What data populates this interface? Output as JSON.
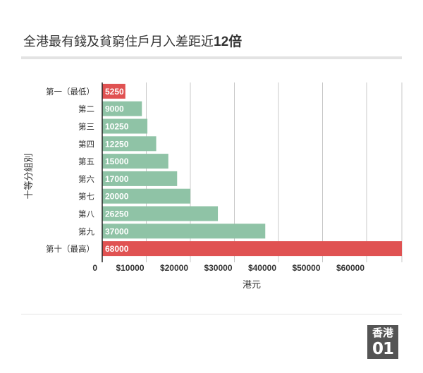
{
  "title": {
    "text": "全港最有錢及貧窮住戶月入差距近",
    "highlight": "12倍"
  },
  "logo": {
    "top": "香港",
    "bottom": "01"
  },
  "colors": {
    "normal": "#8fc3a6",
    "highlight": "#e05252",
    "grid": "#c8c8c8",
    "axis": "#222222"
  },
  "chart_data": {
    "type": "bar",
    "orientation": "horizontal",
    "title": "全港最有錢及貧窮住戶月入差距近12倍",
    "categories": [
      "第一（最低）",
      "第二",
      "第三",
      "第四",
      "第五",
      "第六",
      "第七",
      "第八",
      "第九",
      "第十（最高）"
    ],
    "values": [
      5250,
      9000,
      10250,
      12250,
      15000,
      17000,
      20000,
      26250,
      37000,
      68000
    ],
    "value_labels": [
      "5250",
      "9000",
      "10250",
      "12250",
      "15000",
      "17000",
      "20000",
      "26250",
      "37000",
      "68000"
    ],
    "highlighted": [
      true,
      false,
      false,
      false,
      false,
      false,
      false,
      false,
      false,
      true
    ],
    "xlabel": "港元",
    "ylabel": "十等分組別",
    "xlim": [
      0,
      68000
    ],
    "xticks": [
      0,
      10000,
      20000,
      30000,
      40000,
      50000,
      60000
    ],
    "xtick_labels": [
      "0",
      "$10000",
      "$20000",
      "$30000",
      "$40000",
      "$50000",
      "$60000"
    ],
    "grid": true
  }
}
